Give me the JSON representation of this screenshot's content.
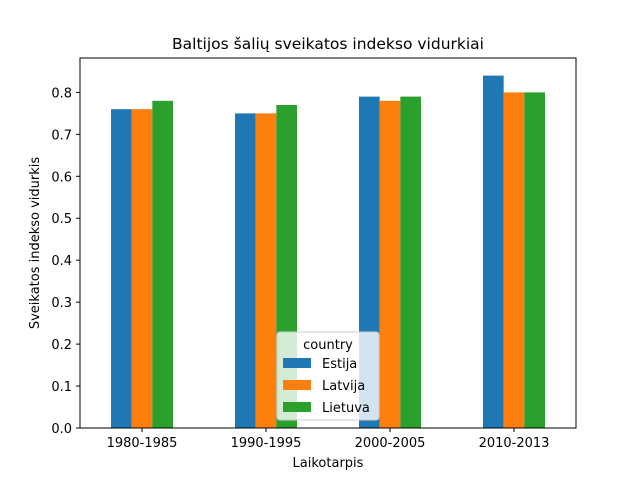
{
  "chart_data": {
    "type": "bar",
    "title": "Baltijos šalių sveikatos indekso vidurkiai",
    "xlabel": "Laikotarpis",
    "ylabel": "Sveikatos indekso vidurkis",
    "categories": [
      "1980-1985",
      "1990-1995",
      "2000-2005",
      "2010-2013"
    ],
    "series": [
      {
        "name": "Estija",
        "color": "#1f77b4",
        "values": [
          0.76,
          0.75,
          0.79,
          0.84
        ]
      },
      {
        "name": "Latvija",
        "color": "#ff7f0e",
        "values": [
          0.76,
          0.75,
          0.78,
          0.8
        ]
      },
      {
        "name": "Lietuva",
        "color": "#2ca02c",
        "values": [
          0.78,
          0.77,
          0.79,
          0.8
        ]
      }
    ],
    "ylim": [
      0,
      0.882
    ],
    "yticks": [
      "0.0",
      "0.1",
      "0.2",
      "0.3",
      "0.4",
      "0.5",
      "0.6",
      "0.7",
      "0.8"
    ],
    "grid": false,
    "legend": {
      "title": "country",
      "placement": "lower-center"
    }
  }
}
